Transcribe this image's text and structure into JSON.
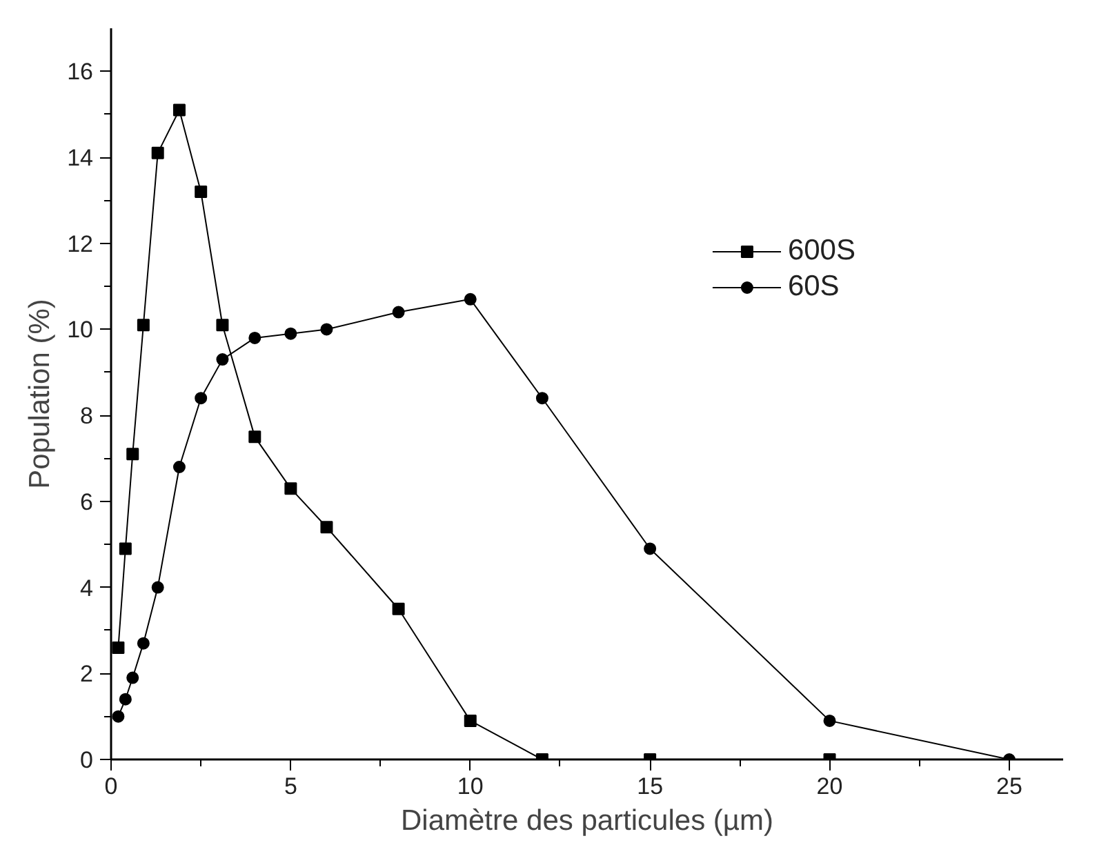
{
  "chart_data": {
    "type": "line",
    "xlabel": "Diamètre des particules (µm)",
    "ylabel": "Population (%)",
    "xlim": [
      0,
      26.5
    ],
    "ylim": [
      0,
      17
    ],
    "xticks": [
      0,
      {
        "value": 2.5,
        "label": null
      },
      5,
      {
        "value": 7.5,
        "label": null
      },
      10,
      {
        "value": 12.5,
        "label": null
      },
      15,
      {
        "value": 17.5,
        "label": null
      },
      20,
      {
        "value": 22.5,
        "label": null
      },
      25
    ],
    "yticks": [
      0,
      {
        "value": 1,
        "label": null
      },
      2,
      {
        "value": 3,
        "label": null
      },
      4,
      {
        "value": 5,
        "label": null
      },
      6,
      {
        "value": 7,
        "label": null
      },
      8,
      {
        "value": 9,
        "label": null
      },
      10,
      {
        "value": 11,
        "label": null
      },
      12,
      {
        "value": 13,
        "label": null
      },
      14,
      {
        "value": 15,
        "label": null
      },
      16
    ],
    "grid": false,
    "legend": "top right",
    "line_style": "solid",
    "series": [
      {
        "name": "600S",
        "color": "#000000",
        "marker": "square",
        "x": [
          0.2,
          0.4,
          0.6,
          0.9,
          1.3,
          1.9,
          2.5,
          3.1,
          4,
          5,
          6,
          8,
          10,
          12,
          15,
          20
        ],
        "values": [
          2.6,
          4.9,
          7.1,
          10.1,
          14.1,
          15.1,
          13.2,
          10.1,
          7.5,
          6.3,
          5.4,
          3.5,
          0.9,
          0,
          0,
          0
        ]
      },
      {
        "name": "60S",
        "color": "#000000",
        "marker": "circle",
        "x": [
          0.2,
          0.4,
          0.6,
          0.9,
          1.3,
          1.9,
          2.5,
          3.1,
          4,
          5,
          6,
          8,
          10,
          12,
          15,
          20,
          25
        ],
        "values": [
          1.0,
          1.4,
          1.9,
          2.7,
          4.0,
          6.8,
          8.4,
          9.3,
          9.8,
          9.9,
          10.0,
          10.4,
          10.7,
          8.4,
          4.9,
          0.9,
          0
        ]
      }
    ]
  }
}
